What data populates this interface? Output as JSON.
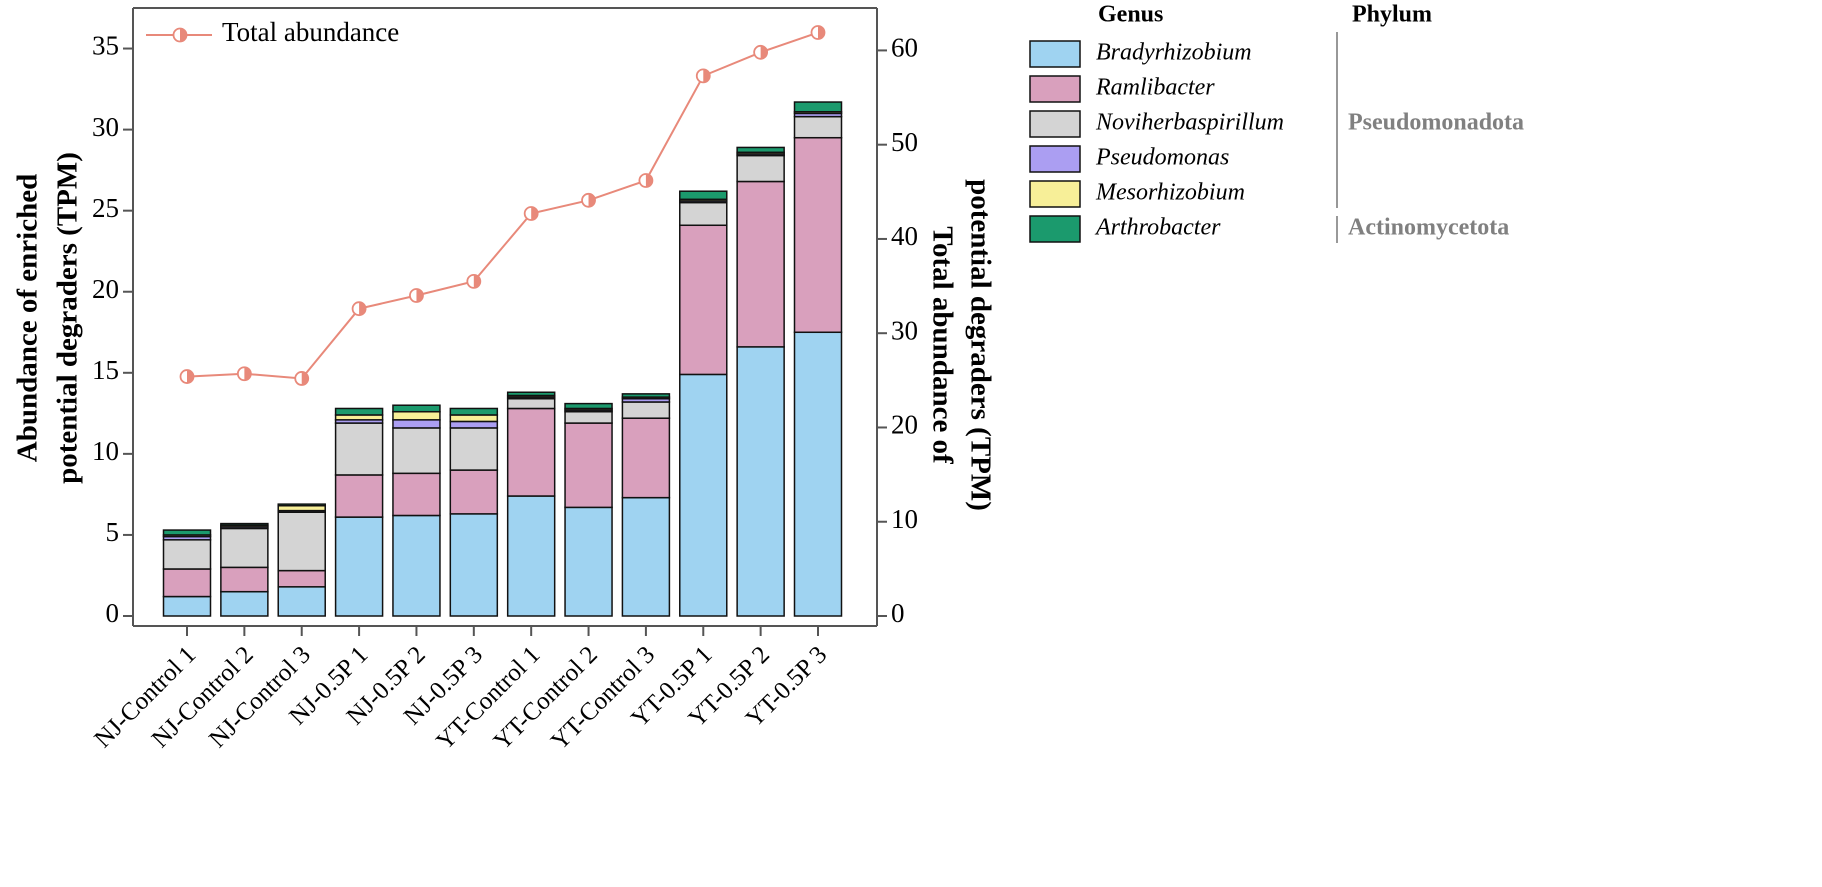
{
  "chart_data": {
    "type": "bar",
    "categories": [
      "NJ-Control 1",
      "NJ-Control 2",
      "NJ-Control 3",
      "NJ-0.5P 1",
      "NJ-0.5P 2",
      "NJ-0.5P 3",
      "YT-Control 1",
      "YT-Control 2",
      "YT-Control 3",
      "YT-0.5P 1",
      "YT-0.5P 2",
      "YT-0.5P 3"
    ],
    "ylabel": [
      "Abundance of enriched",
      "potential degraders (TPM)"
    ],
    "y2label": [
      "Total abundance of",
      "potential degraders (TPM)"
    ],
    "ylim": [
      0,
      37.5
    ],
    "yticks": [
      0,
      5,
      10,
      15,
      20,
      25,
      30,
      35
    ],
    "y2lim": [
      0,
      64.5
    ],
    "y2ticks": [
      0,
      10,
      20,
      30,
      40,
      50,
      60
    ],
    "stacked": true,
    "legend_title": "Genus",
    "phylum_title": "Phylum",
    "phyla": [
      "Pseudomonadota",
      "Actinomycetota"
    ],
    "line_legend_corner": "upper left",
    "series": [
      {
        "name": "Bradyrhizobium",
        "color": "#9fd3f1",
        "values": [
          1.2,
          1.5,
          1.8,
          6.1,
          6.2,
          6.3,
          7.4,
          6.7,
          7.3,
          14.9,
          16.6,
          17.5
        ]
      },
      {
        "name": "Ramlibacter",
        "color": "#d9a0bd",
        "values": [
          1.7,
          1.5,
          1.0,
          2.6,
          2.6,
          2.7,
          5.4,
          5.2,
          4.9,
          9.2,
          10.2,
          12.0
        ]
      },
      {
        "name": "Noviherbaspirillum",
        "color": "#d4d4d4",
        "values": [
          1.8,
          2.4,
          3.6,
          3.2,
          2.8,
          2.6,
          0.6,
          0.7,
          1.0,
          1.4,
          1.6,
          1.3
        ]
      },
      {
        "name": "Pseudomonas",
        "color": "#ab9ef2",
        "values": [
          0.2,
          0.1,
          0.1,
          0.2,
          0.5,
          0.4,
          0.1,
          0.1,
          0.2,
          0.1,
          0.1,
          0.2
        ]
      },
      {
        "name": "Mesorhizobium",
        "color": "#f7ef98",
        "values": [
          0.1,
          0.1,
          0.3,
          0.3,
          0.5,
          0.4,
          0.1,
          0.1,
          0.1,
          0.1,
          0.1,
          0.1
        ]
      },
      {
        "name": "Arthrobacter",
        "color": "#1b9a6d",
        "values": [
          0.3,
          0.1,
          0.1,
          0.4,
          0.4,
          0.4,
          0.2,
          0.3,
          0.2,
          0.5,
          0.3,
          0.6
        ]
      },
      {
        "name": "Total abundance",
        "type": "line",
        "axis": "y2",
        "color": "#e8897a",
        "values": [
          25.4,
          25.7,
          25.2,
          32.6,
          34.0,
          35.5,
          42.7,
          44.1,
          46.2,
          57.3,
          59.8,
          61.9
        ]
      }
    ]
  }
}
